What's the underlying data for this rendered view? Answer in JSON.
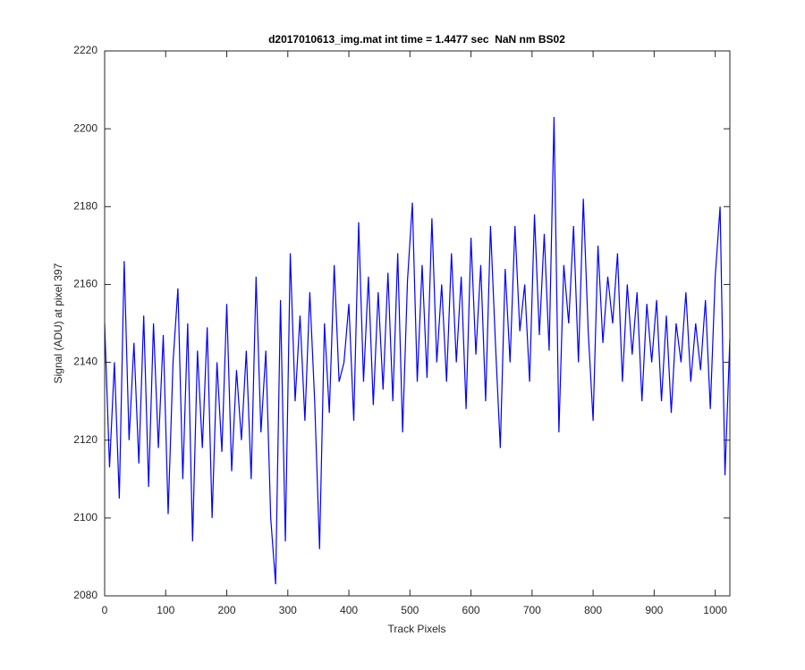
{
  "chart_data": {
    "type": "line",
    "title": "d2017010613_img.mat int time = 1.4477 sec  NaN nm BS02",
    "x_label": "Track Pixels",
    "y_label": "Signal (ADU) at pixel 397",
    "xlim": [
      0,
      1024
    ],
    "ylim": [
      2080,
      2220
    ],
    "xticks": [
      0,
      100,
      200,
      300,
      400,
      500,
      600,
      700,
      800,
      900,
      1000
    ],
    "yticks": [
      2080,
      2100,
      2120,
      2140,
      2160,
      2180,
      2200,
      2220
    ],
    "x": [
      0,
      8,
      16,
      24,
      32,
      40,
      48,
      56,
      64,
      72,
      80,
      88,
      96,
      104,
      112,
      120,
      128,
      136,
      144,
      152,
      160,
      168,
      176,
      184,
      192,
      200,
      208,
      216,
      224,
      232,
      240,
      248,
      256,
      264,
      272,
      280,
      288,
      296,
      304,
      312,
      320,
      328,
      336,
      344,
      352,
      360,
      368,
      376,
      384,
      392,
      400,
      408,
      416,
      424,
      432,
      440,
      448,
      456,
      464,
      472,
      480,
      488,
      496,
      504,
      512,
      520,
      528,
      536,
      544,
      552,
      560,
      568,
      576,
      584,
      592,
      600,
      608,
      616,
      624,
      632,
      640,
      648,
      656,
      664,
      672,
      680,
      688,
      696,
      704,
      712,
      720,
      728,
      736,
      744,
      752,
      760,
      768,
      776,
      784,
      792,
      800,
      808,
      816,
      824,
      832,
      840,
      848,
      856,
      864,
      872,
      880,
      888,
      896,
      904,
      912,
      920,
      928,
      936,
      944,
      952,
      960,
      968,
      976,
      984,
      992,
      1000,
      1008,
      1016,
      1024
    ],
    "series": [
      {
        "color": "#0000ff",
        "values": [
          2150,
          2113,
          2140,
          2105,
          2166,
          2120,
          2145,
          2114,
          2152,
          2108,
          2150,
          2118,
          2147,
          2101,
          2140,
          2159,
          2110,
          2150,
          2094,
          2143,
          2118,
          2149,
          2100,
          2140,
          2117,
          2155,
          2112,
          2138,
          2120,
          2143,
          2110,
          2162,
          2122,
          2143,
          2100,
          2083,
          2156,
          2094,
          2168,
          2130,
          2152,
          2125,
          2158,
          2130,
          2092,
          2150,
          2127,
          2165,
          2135,
          2140,
          2155,
          2125,
          2176,
          2135,
          2162,
          2129,
          2158,
          2133,
          2163,
          2130,
          2168,
          2122,
          2161,
          2181,
          2135,
          2165,
          2136,
          2177,
          2140,
          2160,
          2135,
          2168,
          2140,
          2162,
          2128,
          2172,
          2142,
          2165,
          2130,
          2175,
          2145,
          2118,
          2164,
          2140,
          2175,
          2148,
          2160,
          2135,
          2178,
          2147,
          2173,
          2143,
          2203,
          2122,
          2165,
          2150,
          2175,
          2140,
          2182,
          2148,
          2125,
          2170,
          2145,
          2162,
          2150,
          2168,
          2135,
          2160,
          2142,
          2158,
          2130,
          2155,
          2140,
          2156,
          2130,
          2152,
          2127,
          2150,
          2140,
          2158,
          2135,
          2150,
          2138,
          2156,
          2128,
          2162,
          2180,
          2111,
          2146
        ]
      }
    ]
  }
}
